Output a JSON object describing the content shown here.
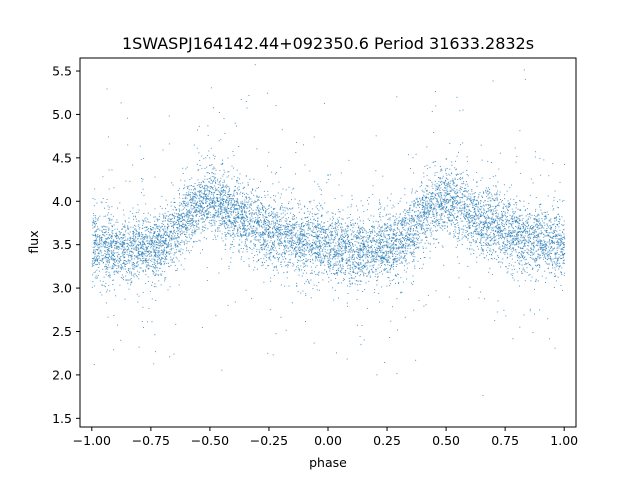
{
  "chart_data": {
    "type": "scatter",
    "title": "1SWASPJ164142.44+092350.6 Period 31633.2832s",
    "xlabel": "phase",
    "ylabel": "flux",
    "xlim": [
      -1.05,
      1.05
    ],
    "ylim": [
      1.4,
      5.65
    ],
    "xticks": [
      -1.0,
      -0.75,
      -0.5,
      -0.25,
      0.0,
      0.25,
      0.5,
      0.75,
      1.0
    ],
    "xtick_labels": [
      "−1.00",
      "−0.75",
      "−0.50",
      "−0.25",
      "0.00",
      "0.25",
      "0.50",
      "0.75",
      "1.00"
    ],
    "yticks": [
      1.5,
      2.0,
      2.5,
      3.0,
      3.5,
      4.0,
      4.5,
      5.0,
      5.5
    ],
    "ytick_labels": [
      "1.5",
      "2.0",
      "2.5",
      "3.0",
      "3.5",
      "4.0",
      "4.5",
      "5.0",
      "5.5"
    ],
    "grid": false,
    "marker_color": "#1f77b4",
    "light_curve_profile": {
      "phase": [
        -1.0,
        -0.9,
        -0.8,
        -0.7,
        -0.6,
        -0.5,
        -0.4,
        -0.3,
        -0.2,
        -0.1,
        0.0,
        0.1,
        0.2,
        0.3,
        0.4,
        0.5,
        0.6,
        0.7,
        0.8,
        0.9,
        1.0
      ],
      "flux": [
        3.5,
        3.45,
        3.45,
        3.5,
        3.85,
        4.05,
        3.85,
        3.75,
        3.6,
        3.55,
        3.5,
        3.45,
        3.45,
        3.5,
        3.85,
        4.05,
        3.85,
        3.75,
        3.6,
        3.55,
        3.5
      ],
      "scatter": 0.2,
      "n_points": 9000
    }
  }
}
